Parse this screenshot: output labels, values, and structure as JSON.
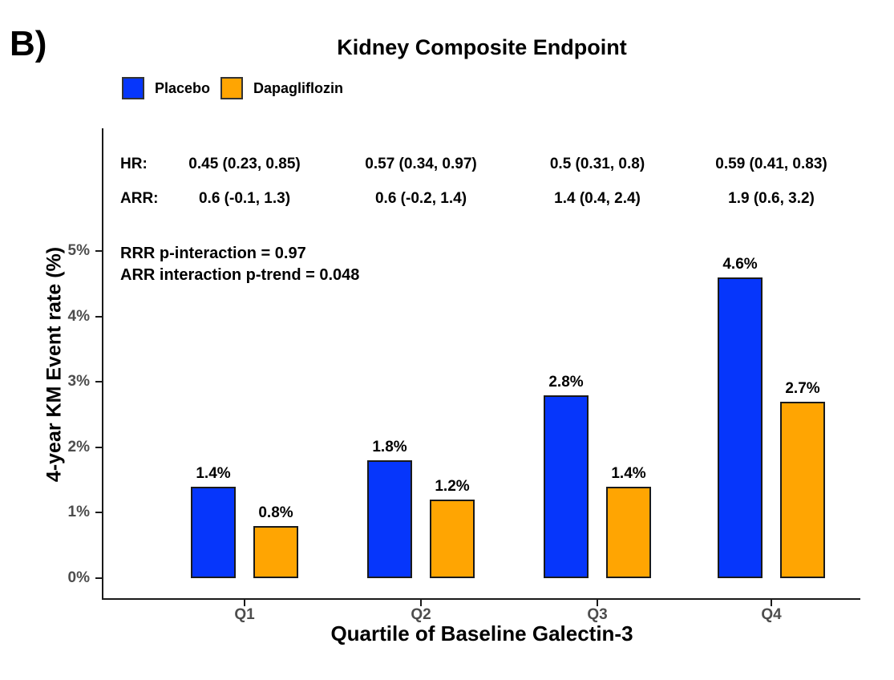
{
  "panel_label": "B)",
  "chart_data": {
    "type": "bar",
    "title": "Kidney Composite Endpoint",
    "xlabel": "Quartile of Baseline Galectin-3",
    "ylabel": "4-year KM Event rate (%)",
    "categories": [
      "Q1",
      "Q2",
      "Q3",
      "Q4"
    ],
    "series": [
      {
        "name": "Placebo",
        "color": "#0636fb",
        "values": [
          1.4,
          1.8,
          2.8,
          4.6
        ],
        "value_labels": [
          "1.4%",
          "1.8%",
          "2.8%",
          "4.6%"
        ]
      },
      {
        "name": "Dapagliflozin",
        "color": "#ffa502",
        "values": [
          0.8,
          1.2,
          1.4,
          2.7
        ],
        "value_labels": [
          "0.8%",
          "1.2%",
          "1.4%",
          "2.7%"
        ]
      }
    ],
    "ylim": [
      0,
      5
    ],
    "yticks": [
      0,
      1,
      2,
      3,
      4,
      5
    ],
    "ytick_labels": [
      "0%",
      "1%",
      "2%",
      "3%",
      "4%",
      "5%"
    ],
    "grid": "off",
    "legend_position": "top-left",
    "annotations": {
      "hr_label": "HR:",
      "hr_values": [
        "0.45 (0.23, 0.85)",
        "0.57 (0.34, 0.97)",
        "0.5 (0.31, 0.8)",
        "0.59 (0.41, 0.83)"
      ],
      "arr_label": "ARR:",
      "arr_values": [
        "0.6 (-0.1, 1.3)",
        "0.6 (-0.2, 1.4)",
        "1.4 (0.4, 2.4)",
        "1.9 (0.6, 3.2)"
      ],
      "stat_lines": [
        "RRR p-interaction = 0.97",
        "ARR interaction p-trend = 0.048"
      ]
    }
  },
  "colors": {
    "placebo_blue": "#0636fb",
    "dapagliflozin_orange": "#ffa502",
    "axis_line": "#1a1a1a",
    "tick_text_grey": "#4d4d4d",
    "text_black": "#000000"
  }
}
